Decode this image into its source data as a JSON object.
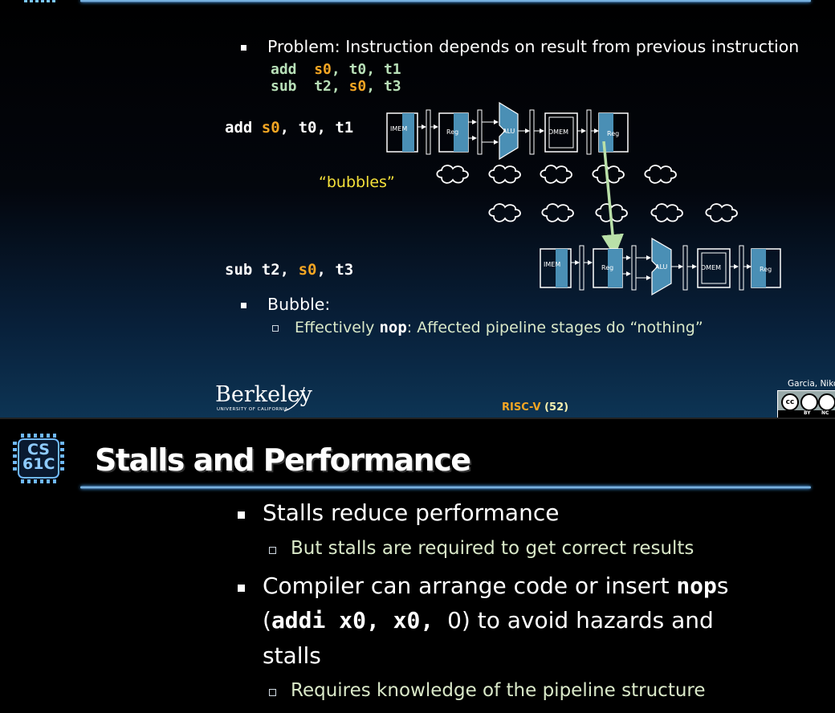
{
  "slide1": {
    "problem_text": "Problem: Instruction depends on result from previous instruction",
    "code_line1": {
      "op": "add",
      "reg1": "s0",
      "sep1": ",",
      "reg2": "t0",
      "sep2": ",",
      "reg3": "t1"
    },
    "code_line2": {
      "op": "sub",
      "reg1": "t2",
      "sep1": ",",
      "reg2": "s0",
      "sep2": ",",
      "reg3": "t3"
    },
    "pipe1_label": {
      "op": "add",
      "r1": "s0",
      "r2": "t0",
      "r3": "t1"
    },
    "pipe2_label": {
      "op": "sub",
      "r1": "t2",
      "r2": "s0",
      "r3": "t3"
    },
    "bubbles_label": "“bubbles”",
    "stages": {
      "imem": "IMEM",
      "reg": "Reg",
      "alu": "ALU",
      "dmem": "DMEM"
    },
    "bubble_heading": "Bubble:",
    "bubble_sub_before": "Effectively ",
    "bubble_sub_code": "nop",
    "bubble_sub_after": ": Affected pipeline stages do “nothing”",
    "footer": {
      "berkeley": "Berkeley",
      "berkeley_sub": "UNIVERSITY OF CALIFORNIA",
      "center_label": "RISC-V",
      "page": "(52)",
      "author": "Garcia, Niko",
      "license_by": "BY",
      "license_nc": "NC"
    }
  },
  "slide2": {
    "logo_line1": "CS",
    "logo_line2": "61C",
    "title": "Stalls and Performance",
    "b1": "Stalls reduce performance",
    "b1_sub": "But stalls are required to get correct results",
    "b2_part1": "Compiler can arrange code or insert ",
    "b2_code1": "nop",
    "b2_part2": "s",
    "b2_paren_open": "(",
    "b2_code2": "addi x0, x0, ",
    "b2_zero": "0",
    "b2_part3": ") to avoid hazards and",
    "b2_part4": "stalls",
    "b2_sub": "Requires knowledge of the pipeline structure"
  },
  "colors": {
    "accent_orange": "#f5a623",
    "sub_green": "#d9e8c8",
    "stage_blue": "#4a8fb5"
  }
}
